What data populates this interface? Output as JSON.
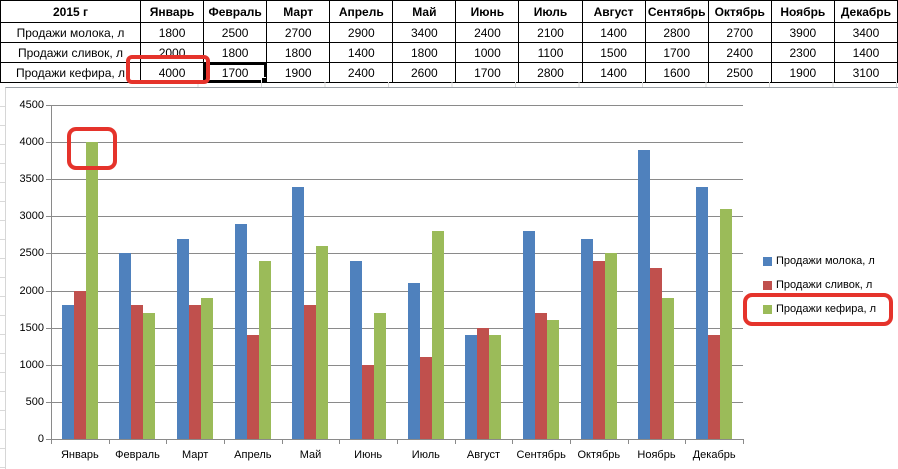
{
  "table": {
    "header": [
      "2015 г",
      "Январь",
      "Февраль",
      "Март",
      "Апрель",
      "Май",
      "Июнь",
      "Июль",
      "Август",
      "Сентябрь",
      "Октябрь",
      "Ноябрь",
      "Декабрь"
    ],
    "rows": [
      {
        "label": "Продажи молока, л",
        "values": [
          1800,
          2500,
          2700,
          2900,
          3400,
          2400,
          2100,
          1400,
          2800,
          2700,
          3900,
          3400
        ]
      },
      {
        "label": "Продажи сливок, л",
        "values": [
          2000,
          1800,
          1800,
          1400,
          1800,
          1000,
          1100,
          1500,
          1700,
          2400,
          2300,
          1400
        ]
      },
      {
        "label": "Продажи кефира, л",
        "values": [
          4000,
          1700,
          1900,
          2400,
          2600,
          1700,
          2800,
          1400,
          1600,
          2500,
          1900,
          3100
        ]
      }
    ],
    "selected_cell": {
      "row_index": 2,
      "col_index": 1,
      "value": 4000
    }
  },
  "chart_data": {
    "type": "bar",
    "categories": [
      "Январь",
      "Февраль",
      "Март",
      "Апрель",
      "Май",
      "Июнь",
      "Июль",
      "Август",
      "Сентябрь",
      "Октябрь",
      "Ноябрь",
      "Декабрь"
    ],
    "series": [
      {
        "name": "Продажи молока, л",
        "color": "#4F81BD",
        "values": [
          1800,
          2500,
          2700,
          2900,
          3400,
          2400,
          2100,
          1400,
          2800,
          2700,
          3900,
          3400
        ]
      },
      {
        "name": "Продажи сливок, л",
        "color": "#C0504D",
        "values": [
          2000,
          1800,
          1800,
          1400,
          1800,
          1000,
          1100,
          1500,
          1700,
          2400,
          2300,
          1400
        ]
      },
      {
        "name": "Продажи кефира, л",
        "color": "#9BBB59",
        "values": [
          4000,
          1700,
          1900,
          2400,
          2600,
          1700,
          2800,
          1400,
          1600,
          2500,
          1900,
          3100
        ]
      }
    ],
    "ylim": [
      0,
      4500
    ],
    "ytick_step": 500,
    "grid": true,
    "legend_position": "right"
  },
  "annotations": {
    "color": "#E5332B",
    "items": [
      {
        "label": "highlight-selected-cell"
      },
      {
        "label": "highlight-january-kefir-bar"
      },
      {
        "label": "highlight-legend-kefir"
      }
    ]
  }
}
